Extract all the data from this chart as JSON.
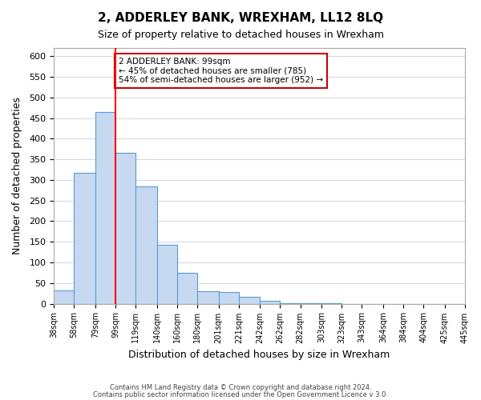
{
  "title": "2, ADDERLEY BANK, WREXHAM, LL12 8LQ",
  "subtitle": "Size of property relative to detached houses in Wrexham",
  "xlabel": "Distribution of detached houses by size in Wrexham",
  "ylabel": "Number of detached properties",
  "bar_edges": [
    38,
    58,
    79,
    99,
    119,
    140,
    160,
    180,
    201,
    221,
    242,
    262,
    282,
    303,
    323,
    343,
    364,
    384,
    404,
    425,
    445
  ],
  "bar_heights": [
    32,
    317,
    464,
    365,
    285,
    142,
    75,
    31,
    29,
    16,
    7,
    2,
    1,
    1,
    0,
    0,
    0,
    0,
    0,
    0
  ],
  "bar_color": "#c6d9f0",
  "bar_edge_color": "#5b9bd5",
  "vline_x": 99,
  "vline_color": "#ff0000",
  "annotation_title": "2 ADDERLEY BANK: 99sqm",
  "annotation_line1": "← 45% of detached houses are smaller (785)",
  "annotation_line2": "54% of semi-detached houses are larger (952) →",
  "annotation_box_edgecolor": "#cc0000",
  "ylim": [
    0,
    620
  ],
  "yticks": [
    0,
    50,
    100,
    150,
    200,
    250,
    300,
    350,
    400,
    450,
    500,
    550,
    600
  ],
  "x_tick_labels": [
    "38sqm",
    "58sqm",
    "79sqm",
    "99sqm",
    "119sqm",
    "140sqm",
    "160sqm",
    "180sqm",
    "201sqm",
    "221sqm",
    "242sqm",
    "262sqm",
    "282sqm",
    "303sqm",
    "323sqm",
    "343sqm",
    "364sqm",
    "384sqm",
    "404sqm",
    "425sqm",
    "445sqm"
  ],
  "footer1": "Contains HM Land Registry data © Crown copyright and database right 2024.",
  "footer2": "Contains public sector information licensed under the Open Government Licence v 3.0.",
  "background_color": "#ffffff",
  "grid_color": "#d0dce8"
}
